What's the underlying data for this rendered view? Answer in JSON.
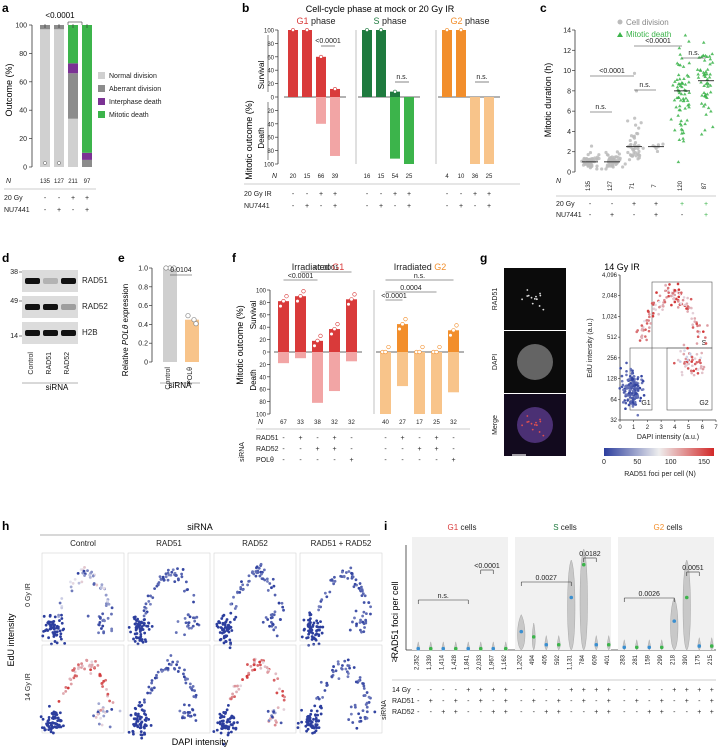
{
  "colors": {
    "red": "#d93a3a",
    "red_light": "#f2a5a5",
    "green_dark": "#1e7a3e",
    "green": "#3cb44b",
    "green_light": "#9ed8a0",
    "orange": "#f28e2b",
    "orange_light": "#f8c48a",
    "grey": "#d0d0d0",
    "grey_dark": "#8c8c8c",
    "purple": "#7b3294",
    "blue": "#2c3e9e"
  },
  "panel_labels": {
    "a": "a",
    "b": "b",
    "c": "c",
    "d": "d",
    "e": "e",
    "f": "f",
    "g": "g",
    "h": "h",
    "i": "i"
  },
  "chart_data": [
    {
      "id": "a",
      "type": "bar",
      "stacked": true,
      "ylabel": "Outcome (%)",
      "yticks": [
        "0",
        "20",
        "40",
        "60",
        "80",
        "100"
      ],
      "ylim": [
        0,
        100
      ],
      "categories": [
        "1",
        "2",
        "3",
        "4"
      ],
      "N_label": "N",
      "N": [
        "135",
        "127",
        "211",
        "97"
      ],
      "series": [
        {
          "name": "Normal division",
          "values": [
            97,
            97,
            34,
            0
          ],
          "color": "#d0d0d0"
        },
        {
          "name": "Aberrant division",
          "values": [
            3,
            3,
            32,
            5
          ],
          "color": "#8c8c8c"
        },
        {
          "name": "Interphase death",
          "values": [
            0,
            0,
            7,
            5
          ],
          "color": "#7b3294"
        },
        {
          "name": "Mitotic death",
          "values": [
            0,
            0,
            27,
            90
          ],
          "color": "#3cb44b"
        }
      ],
      "pvalue": "<0.0001",
      "conditions": [
        {
          "label": "20 Gy",
          "marks": [
            "-",
            "-",
            "+",
            "+"
          ]
        },
        {
          "label": "NU7441",
          "marks": [
            "-",
            "+",
            "-",
            "+"
          ]
        }
      ]
    },
    {
      "id": "b",
      "type": "bar",
      "title": "Cell-cycle phase at mock or 20 Gy IR",
      "ylabel": "Mitotic outcome (%)",
      "yticks": [
        "100",
        "80",
        "60",
        "40",
        "20",
        "0",
        "20",
        "40",
        "60",
        "80",
        "100"
      ],
      "survival_label": "Survival",
      "death_label": "Death",
      "subplots": [
        {
          "name": "G1",
          "suffix": " phase",
          "survival": [
            100,
            100,
            60,
            12
          ],
          "death": [
            0,
            0,
            40,
            88
          ],
          "N": [
            "20",
            "15",
            "66",
            "39"
          ],
          "pvalue": "<0.0001"
        },
        {
          "name": "S",
          "suffix": " phase",
          "survival": [
            100,
            100,
            8,
            0
          ],
          "death": [
            0,
            0,
            92,
            100
          ],
          "N": [
            "16",
            "15",
            "54",
            "25"
          ],
          "pvalue": "n.s."
        },
        {
          "name": "G2",
          "suffix": " phase",
          "survival": [
            100,
            100,
            0,
            0
          ],
          "death": [
            0,
            0,
            100,
            100
          ],
          "N": [
            "4",
            "10",
            "36",
            "25"
          ],
          "pvalue": "n.s."
        }
      ],
      "N_label": "N",
      "conditions": [
        {
          "label": "20 Gy IR",
          "marks": [
            "-",
            "-",
            "+",
            "+",
            "-",
            "-",
            "+",
            "+",
            "-",
            "-",
            "+",
            "+"
          ]
        },
        {
          "label": "NU7441",
          "marks": [
            "-",
            "+",
            "-",
            "+",
            "-",
            "+",
            "-",
            "+",
            "-",
            "+",
            "-",
            "+"
          ]
        }
      ]
    },
    {
      "id": "c",
      "type": "scatter",
      "ylabel": "Mitotic duration (h)",
      "yticks": [
        "0",
        "2",
        "4",
        "6",
        "8",
        "10",
        "12",
        "14"
      ],
      "ylim": [
        0,
        14
      ],
      "legend": [
        "Cell division",
        "Mitotic death"
      ],
      "N_label": "N",
      "N": [
        "135",
        "127",
        "71",
        "7",
        "120",
        "87"
      ],
      "medians": [
        1,
        1,
        2.5,
        2.5,
        8,
        9
      ],
      "comparisons": [
        "n.s.",
        "<0.0001",
        "n.s.",
        "<0.0001",
        "n.s."
      ],
      "conditions": [
        {
          "label": "20 Gy",
          "marks": [
            "-",
            "-",
            "+",
            "+",
            "+",
            "+"
          ]
        },
        {
          "label": "NU7441",
          "marks": [
            "-",
            "+",
            "-",
            "+",
            "-",
            "+"
          ]
        }
      ]
    },
    {
      "id": "d",
      "type": "blot",
      "mw": [
        "38",
        "49",
        "14"
      ],
      "bands": [
        "RAD51",
        "RAD52",
        "H2B"
      ],
      "lanes": [
        "Control",
        "RAD51",
        "RAD52"
      ],
      "xlabel": "siRNA"
    },
    {
      "id": "e",
      "type": "bar",
      "ylabel": "Relative POLθ expression",
      "ylabel_prefix": "Relative ",
      "ylabel_gene": "POLθ",
      "ylabel_suffix": " expression",
      "yticks": [
        "0",
        "0.2",
        "0.4",
        "0.6",
        "0.8",
        "1.0"
      ],
      "ylim": [
        0,
        1
      ],
      "categories": [
        "Control",
        "POLθ"
      ],
      "values": [
        1.0,
        0.45
      ],
      "pvalue": "0.0104",
      "xlabel": "siRNA"
    },
    {
      "id": "f",
      "type": "bar",
      "ylabel": "Mitotic outcome (%)",
      "yticks": [
        "100",
        "80",
        "60",
        "40",
        "20",
        "0",
        "20",
        "40",
        "60",
        "80",
        "100"
      ],
      "survival_label": "Survival",
      "death_label": "Death",
      "subplots": [
        {
          "name": "G1",
          "prefix": "Irradiated ",
          "survival": [
            82,
            90,
            18,
            37,
            85
          ],
          "death": [
            18,
            10,
            82,
            63,
            15
          ],
          "N": [
            "67",
            "33",
            "38",
            "32",
            "32"
          ],
          "pvalues": [
            "<0.0001",
            "<0.0001"
          ]
        },
        {
          "name": "G2",
          "prefix": "Irradiated ",
          "survival": [
            0,
            45,
            0,
            0,
            35
          ],
          "death": [
            100,
            55,
            100,
            100,
            65
          ],
          "N": [
            "40",
            "27",
            "17",
            "25",
            "32"
          ],
          "pvalues": [
            "<0.0001",
            "0.0004",
            "n.s."
          ]
        }
      ],
      "N_label": "N",
      "siRNA_label": "siRNA",
      "conditions": [
        {
          "label": "RAD51",
          "marks": [
            "-",
            "+",
            "-",
            "+",
            "-",
            "-",
            "+",
            "-",
            "+",
            "-"
          ]
        },
        {
          "label": "RAD52",
          "marks": [
            "-",
            "-",
            "+",
            "+",
            "-",
            "-",
            "-",
            "+",
            "+",
            "-"
          ]
        },
        {
          "label": "POLθ",
          "marks": [
            "-",
            "-",
            "-",
            "-",
            "+",
            "-",
            "-",
            "-",
            "-",
            "+"
          ]
        }
      ]
    },
    {
      "id": "g",
      "type": "scatter",
      "title": "14 Gy IR",
      "image_labels": [
        "RAD51",
        "DAPI",
        "Merge"
      ],
      "xlabel": "DAPI intensity (a.u.)",
      "ylabel": "EdU intensity (a.u.)",
      "xticks": [
        "0",
        "1",
        "2",
        "3",
        "4",
        "5",
        "6",
        "7"
      ],
      "yticks": [
        "32",
        "64",
        "128",
        "256",
        "512",
        "1,024",
        "2,048",
        "4,096"
      ],
      "gates": [
        "S",
        "G1",
        "G2"
      ],
      "colorbar_ticks": [
        "0",
        "50",
        "100",
        "150"
      ],
      "colorbar_label": "RAD51 foci per cell (N)"
    },
    {
      "id": "h",
      "type": "scatter",
      "top_label": "siRNA",
      "columns": [
        "Control",
        "RAD51",
        "RAD52",
        "RAD51 + RAD52"
      ],
      "rows": [
        "0 Gy IR",
        "14 Gy IR"
      ],
      "xlabel": "DAPI intensity",
      "ylabel": "EdU intensity"
    },
    {
      "id": "i",
      "type": "violin",
      "ylabel": "RAD51 foci per cell",
      "groups": [
        {
          "name": "G1",
          "suffix": " cells",
          "N": [
            "2,352",
            "1,339",
            "1,414",
            "1,428",
            "1,841",
            "2,033",
            "1,967",
            "1,162"
          ],
          "pvalues": [
            "n.s.",
            "<0.0001"
          ],
          "medians": [
            1,
            1,
            1,
            1,
            1,
            1,
            1,
            1
          ]
        },
        {
          "name": "S",
          "suffix": " cells",
          "N": [
            "1,202",
            "494",
            "405",
            "592",
            "1,131",
            "784",
            "609",
            "401"
          ],
          "pvalues": [
            "0.0027",
            "0.0182"
          ],
          "medians": [
            14,
            10,
            4,
            4,
            40,
            65,
            4,
            4
          ]
        },
        {
          "name": "G2",
          "suffix": " cells",
          "N": [
            "283",
            "281",
            "159",
            "299",
            "218",
            "390",
            "175",
            "215"
          ],
          "pvalues": [
            "0.0026",
            "0.0051"
          ],
          "medians": [
            2,
            2,
            2,
            2,
            22,
            40,
            3,
            3
          ]
        }
      ],
      "N_label": "N",
      "siRNA_label": "siRNA",
      "conditions": [
        {
          "label": "14 Gy",
          "marks": [
            "-",
            "-",
            "-",
            "-",
            "+",
            "+",
            "+",
            "+"
          ]
        },
        {
          "label": "RAD51",
          "marks": [
            "-",
            "+",
            "-",
            "+",
            "-",
            "+",
            "-",
            "+"
          ]
        },
        {
          "label": "RAD52",
          "marks": [
            "-",
            "-",
            "+",
            "+",
            "-",
            "-",
            "+",
            "+"
          ]
        }
      ]
    }
  ]
}
